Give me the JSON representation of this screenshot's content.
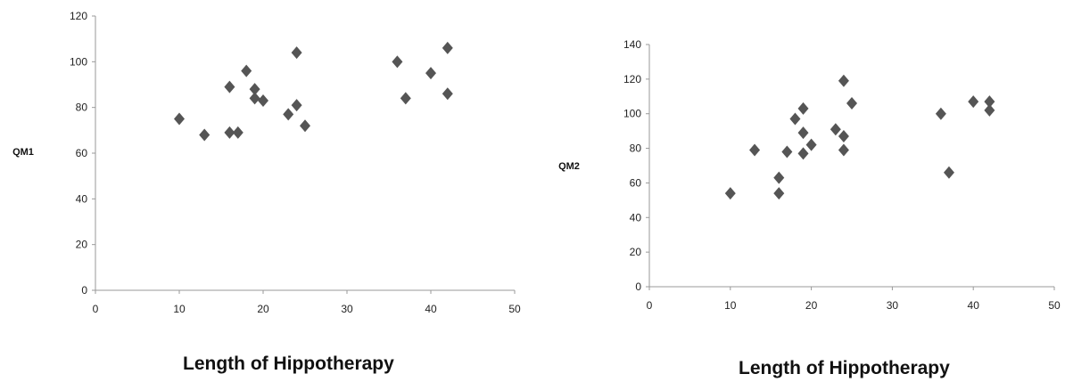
{
  "chart_data": [
    {
      "type": "scatter",
      "xlabel": "Length of Hippotherapy",
      "ylabel": "QM1",
      "xlim": [
        0,
        50
      ],
      "ylim": [
        0,
        120
      ],
      "xticks": [
        0,
        10,
        20,
        30,
        40,
        50
      ],
      "yticks": [
        0,
        20,
        40,
        60,
        80,
        100,
        120
      ],
      "grid": false,
      "marker": "diamond",
      "color": "#555555",
      "points": [
        {
          "x": 10,
          "y": 75
        },
        {
          "x": 13,
          "y": 68
        },
        {
          "x": 16,
          "y": 69
        },
        {
          "x": 16,
          "y": 89
        },
        {
          "x": 17,
          "y": 69
        },
        {
          "x": 18,
          "y": 96
        },
        {
          "x": 19,
          "y": 88
        },
        {
          "x": 19,
          "y": 84
        },
        {
          "x": 20,
          "y": 83
        },
        {
          "x": 23,
          "y": 77
        },
        {
          "x": 24,
          "y": 104
        },
        {
          "x": 24,
          "y": 81
        },
        {
          "x": 25,
          "y": 72
        },
        {
          "x": 36,
          "y": 100
        },
        {
          "x": 37,
          "y": 84
        },
        {
          "x": 40,
          "y": 95
        },
        {
          "x": 42,
          "y": 106
        },
        {
          "x": 42,
          "y": 86
        }
      ]
    },
    {
      "type": "scatter",
      "xlabel": "Length of Hippotherapy",
      "ylabel": "QM2",
      "xlim": [
        0,
        50
      ],
      "ylim": [
        0,
        140
      ],
      "xticks": [
        0,
        10,
        20,
        30,
        40,
        50
      ],
      "yticks": [
        0,
        20,
        40,
        60,
        80,
        100,
        120,
        140
      ],
      "grid": false,
      "marker": "diamond",
      "color": "#555555",
      "points": [
        {
          "x": 10,
          "y": 54
        },
        {
          "x": 13,
          "y": 79
        },
        {
          "x": 16,
          "y": 54
        },
        {
          "x": 16,
          "y": 63
        },
        {
          "x": 17,
          "y": 78
        },
        {
          "x": 18,
          "y": 97
        },
        {
          "x": 19,
          "y": 103
        },
        {
          "x": 19,
          "y": 89
        },
        {
          "x": 19,
          "y": 77
        },
        {
          "x": 20,
          "y": 82
        },
        {
          "x": 23,
          "y": 91
        },
        {
          "x": 24,
          "y": 119
        },
        {
          "x": 24,
          "y": 87
        },
        {
          "x": 24,
          "y": 79
        },
        {
          "x": 25,
          "y": 106
        },
        {
          "x": 36,
          "y": 100
        },
        {
          "x": 37,
          "y": 66
        },
        {
          "x": 40,
          "y": 107
        },
        {
          "x": 42,
          "y": 107
        },
        {
          "x": 42,
          "y": 102
        }
      ]
    }
  ]
}
